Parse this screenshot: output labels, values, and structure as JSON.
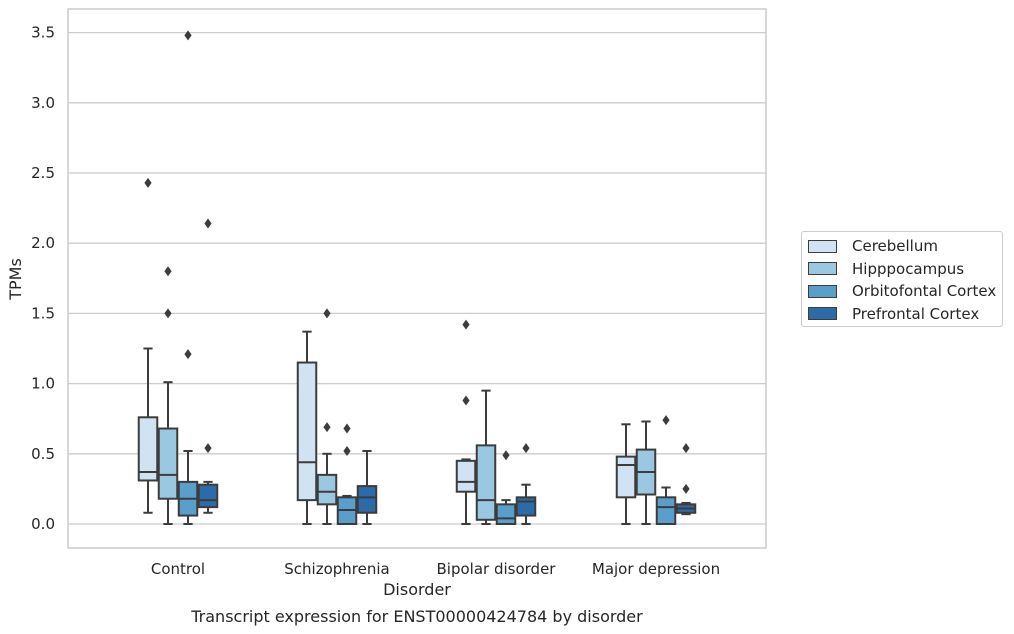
{
  "chart_data": {
    "type": "box",
    "caption": "Transcript expression for ENST00000424784 by disorder",
    "xlabel": "Disorder",
    "ylabel": "TPMs",
    "ylim": [
      -0.17,
      3.66
    ],
    "yticks": [
      "0.0",
      "0.5",
      "1.0",
      "1.5",
      "2.0",
      "2.5",
      "3.0",
      "3.5"
    ],
    "categories": [
      "Control",
      "Schizophrenia",
      "Bipolar disorder",
      "Major depression"
    ],
    "grid": "horizontal",
    "legend_position": "right",
    "series": [
      {
        "name": "Cerebellum",
        "color": "#d1e2f2",
        "boxes": [
          {
            "min": 0.08,
            "q1": 0.31,
            "median": 0.37,
            "q3": 0.76,
            "max": 1.25,
            "outliers": [
              2.43
            ]
          },
          {
            "min": 0.0,
            "q1": 0.17,
            "median": 0.44,
            "q3": 1.15,
            "max": 1.37,
            "outliers": []
          },
          {
            "min": 0.0,
            "q1": 0.23,
            "median": 0.3,
            "q3": 0.45,
            "max": 0.46,
            "outliers": [
              0.88,
              1.42
            ]
          },
          {
            "min": 0.0,
            "q1": 0.19,
            "median": 0.42,
            "q3": 0.48,
            "max": 0.71,
            "outliers": []
          }
        ]
      },
      {
        "name": "Hipppocampus",
        "color": "#9ac8e0",
        "boxes": [
          {
            "min": 0.0,
            "q1": 0.18,
            "median": 0.35,
            "q3": 0.68,
            "max": 1.01,
            "outliers": [
              1.5,
              1.8
            ]
          },
          {
            "min": 0.0,
            "q1": 0.14,
            "median": 0.23,
            "q3": 0.35,
            "max": 0.5,
            "outliers": [
              0.69,
              1.5
            ]
          },
          {
            "min": 0.0,
            "q1": 0.03,
            "median": 0.17,
            "q3": 0.56,
            "max": 0.95,
            "outliers": []
          },
          {
            "min": 0.0,
            "q1": 0.21,
            "median": 0.37,
            "q3": 0.53,
            "max": 0.73,
            "outliers": []
          }
        ]
      },
      {
        "name": "Orbitofontal Cortex",
        "color": "#5a9ecc",
        "boxes": [
          {
            "min": 0.0,
            "q1": 0.06,
            "median": 0.18,
            "q3": 0.3,
            "max": 0.52,
            "outliers": [
              1.21,
              3.48
            ]
          },
          {
            "min": 0.0,
            "q1": 0.0,
            "median": 0.1,
            "q3": 0.19,
            "max": 0.2,
            "outliers": [
              0.52,
              0.68
            ]
          },
          {
            "min": 0.0,
            "q1": 0.0,
            "median": 0.04,
            "q3": 0.14,
            "max": 0.17,
            "outliers": [
              0.49
            ]
          },
          {
            "min": 0.0,
            "q1": 0.0,
            "median": 0.12,
            "q3": 0.19,
            "max": 0.26,
            "outliers": [
              0.74
            ]
          }
        ]
      },
      {
        "name": "Prefrontal Cortex",
        "color": "#2c6aa8",
        "boxes": [
          {
            "min": 0.08,
            "q1": 0.12,
            "median": 0.17,
            "q3": 0.28,
            "max": 0.3,
            "outliers": [
              0.54,
              2.14
            ]
          },
          {
            "min": 0.0,
            "q1": 0.08,
            "median": 0.19,
            "q3": 0.27,
            "max": 0.52,
            "outliers": []
          },
          {
            "min": 0.0,
            "q1": 0.06,
            "median": 0.16,
            "q3": 0.19,
            "max": 0.28,
            "outliers": [
              0.54
            ]
          },
          {
            "min": 0.07,
            "q1": 0.08,
            "median": 0.11,
            "q3": 0.14,
            "max": 0.15,
            "outliers": [
              0.25,
              0.54
            ]
          }
        ]
      }
    ]
  }
}
